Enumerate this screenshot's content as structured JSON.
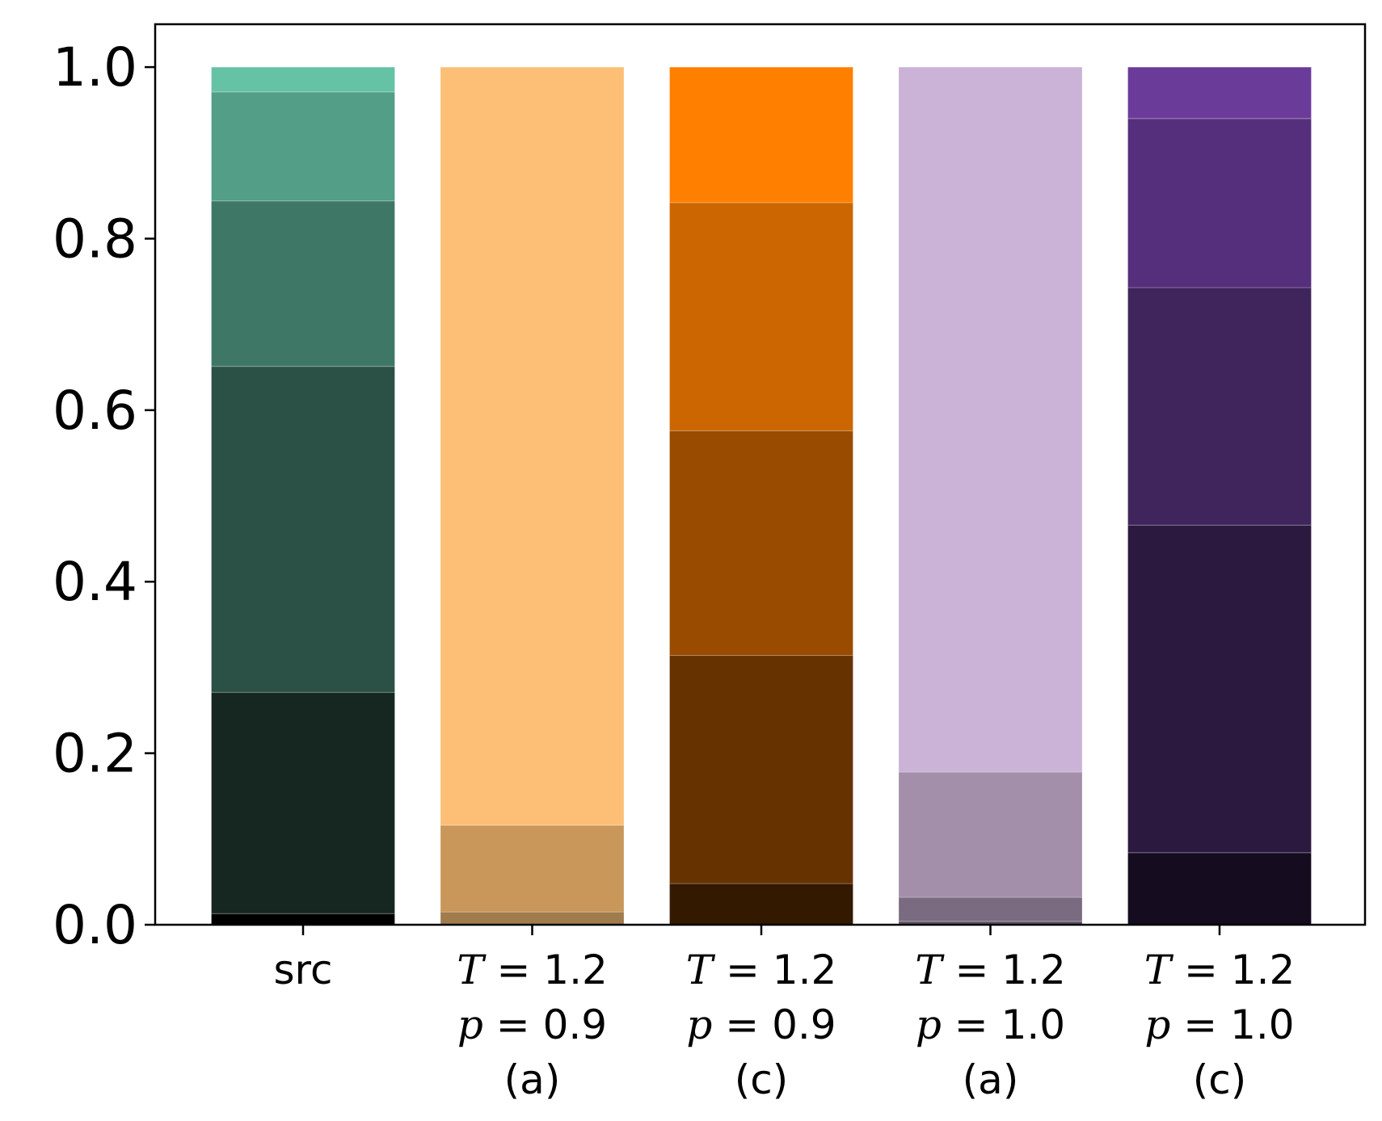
{
  "chart_data": {
    "type": "bar",
    "stacked": true,
    "title": "",
    "xlabel": "",
    "ylabel": "",
    "ylim": [
      0,
      1.05
    ],
    "yticks": [
      "0.0",
      "0.2",
      "0.4",
      "0.6",
      "0.8",
      "1.0"
    ],
    "grid": false,
    "legend": "none",
    "categories": [
      {
        "lines": [
          [
            {
              "t": "src"
            }
          ]
        ]
      },
      {
        "lines": [
          [
            {
              "t": "T",
              "i": true
            },
            {
              "t": " = 1.2"
            }
          ],
          [
            {
              "t": "p",
              "i": true
            },
            {
              "t": " = 0.9"
            }
          ],
          [
            {
              "t": "(a)"
            }
          ]
        ]
      },
      {
        "lines": [
          [
            {
              "t": "T",
              "i": true
            },
            {
              "t": " = 1.2"
            }
          ],
          [
            {
              "t": "p",
              "i": true
            },
            {
              "t": " = 0.9"
            }
          ],
          [
            {
              "t": "(c)"
            }
          ]
        ]
      },
      {
        "lines": [
          [
            {
              "t": "T",
              "i": true
            },
            {
              "t": " = 1.2"
            }
          ],
          [
            {
              "t": "p",
              "i": true
            },
            {
              "t": " = 1.0"
            }
          ],
          [
            {
              "t": "(a)"
            }
          ]
        ]
      },
      {
        "lines": [
          [
            {
              "t": "T",
              "i": true
            },
            {
              "t": " = 1.2"
            }
          ],
          [
            {
              "t": "p",
              "i": true
            },
            {
              "t": " = 1.0"
            }
          ],
          [
            {
              "t": "(c)"
            }
          ]
        ]
      }
    ],
    "bars": [
      {
        "segments": [
          {
            "value": 0.013,
            "color": "#000000"
          },
          {
            "value": 0.258,
            "color": "#162722"
          },
          {
            "value": 0.38,
            "color": "#2b5045"
          },
          {
            "value": 0.193,
            "color": "#3f7766"
          },
          {
            "value": 0.127,
            "color": "#539e86"
          },
          {
            "value": 0.029,
            "color": "#66c2a5"
          }
        ]
      },
      {
        "segments": [
          {
            "value": 0.015,
            "color": "#a07c4d"
          },
          {
            "value": 0.101,
            "color": "#c9975a"
          },
          {
            "value": 0.884,
            "color": "#fcbf75"
          }
        ]
      },
      {
        "segments": [
          {
            "value": 0.048,
            "color": "#321900"
          },
          {
            "value": 0.266,
            "color": "#663300"
          },
          {
            "value": 0.262,
            "color": "#994c00"
          },
          {
            "value": 0.266,
            "color": "#cc6600"
          },
          {
            "value": 0.158,
            "color": "#ff8000"
          }
        ]
      },
      {
        "segments": [
          {
            "value": 0.004,
            "color": "#5e5266"
          },
          {
            "value": 0.028,
            "color": "#7a6b80"
          },
          {
            "value": 0.146,
            "color": "#a38fa9"
          },
          {
            "value": 0.822,
            "color": "#cab3d6"
          }
        ]
      },
      {
        "segments": [
          {
            "value": 0.084,
            "color": "#150c1f"
          },
          {
            "value": 0.382,
            "color": "#2b193f"
          },
          {
            "value": 0.277,
            "color": "#40255c"
          },
          {
            "value": 0.197,
            "color": "#562f7c"
          },
          {
            "value": 0.06,
            "color": "#6b3b9a"
          }
        ]
      }
    ]
  }
}
